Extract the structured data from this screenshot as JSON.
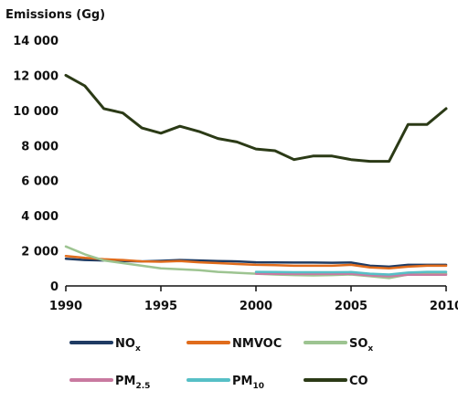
{
  "chart_data": {
    "type": "line",
    "ylabel": "Emissions (Gg)",
    "xlabel": "",
    "ylim": [
      0,
      14000
    ],
    "xlim": [
      1990,
      2010
    ],
    "y_ticks": [
      0,
      2000,
      4000,
      6000,
      8000,
      10000,
      12000,
      14000
    ],
    "y_tick_labels": [
      "0",
      "2 000",
      "4 000",
      "6 000",
      "8 000",
      "10 000",
      "12 000",
      "14 000"
    ],
    "x_ticks": [
      1990,
      1995,
      2000,
      2005,
      2010
    ],
    "x_tick_labels": [
      "1990",
      "1995",
      "2000",
      "2005",
      "2010"
    ],
    "grid": false,
    "legend": "bottom",
    "x": [
      1990,
      1991,
      1992,
      1993,
      1994,
      1995,
      1996,
      1997,
      1998,
      1999,
      2000,
      2001,
      2002,
      2003,
      2004,
      2005,
      2006,
      2007,
      2008,
      2009,
      2010
    ],
    "series": [
      {
        "name": "NOx",
        "label_main": "NO",
        "label_sub": "x",
        "color": "#1f3b63",
        "values": [
          1550,
          1480,
          1450,
          1420,
          1400,
          1430,
          1480,
          1450,
          1420,
          1400,
          1350,
          1340,
          1330,
          1330,
          1320,
          1330,
          1150,
          1100,
          1200,
          1200,
          1200
        ]
      },
      {
        "name": "NMVOC",
        "label_main": "NMVOC",
        "label_sub": "",
        "color": "#e06c1c",
        "values": [
          1700,
          1600,
          1520,
          1480,
          1400,
          1380,
          1420,
          1350,
          1300,
          1250,
          1200,
          1180,
          1150,
          1150,
          1150,
          1200,
          1050,
          1000,
          1100,
          1150,
          1150
        ]
      },
      {
        "name": "SOx",
        "label_main": "SO",
        "label_sub": "x",
        "color": "#9dc491",
        "values": [
          2250,
          1800,
          1450,
          1300,
          1150,
          1000,
          950,
          900,
          800,
          750,
          700,
          650,
          620,
          600,
          620,
          650,
          550,
          450,
          650,
          700,
          700
        ]
      },
      {
        "name": "PM2.5",
        "label_main": "PM",
        "label_sub": "2.5",
        "color": "#c97aa0",
        "values": [
          null,
          null,
          null,
          null,
          null,
          null,
          null,
          null,
          null,
          null,
          700,
          690,
          680,
          680,
          680,
          690,
          600,
          550,
          640,
          640,
          640
        ]
      },
      {
        "name": "PM10",
        "label_main": "PM",
        "label_sub": "10",
        "color": "#56bfc6",
        "values": [
          null,
          null,
          null,
          null,
          null,
          null,
          null,
          null,
          null,
          null,
          800,
          790,
          780,
          780,
          780,
          790,
          700,
          650,
          760,
          800,
          800
        ]
      },
      {
        "name": "CO",
        "label_main": "CO",
        "label_sub": "",
        "color": "#2b3a16",
        "values": [
          12000,
          11400,
          10100,
          9850,
          9000,
          8700,
          9100,
          8800,
          8400,
          8200,
          7800,
          7700,
          7200,
          7400,
          7400,
          7200,
          7100,
          7100,
          9200,
          9200,
          10100
        ]
      }
    ]
  }
}
